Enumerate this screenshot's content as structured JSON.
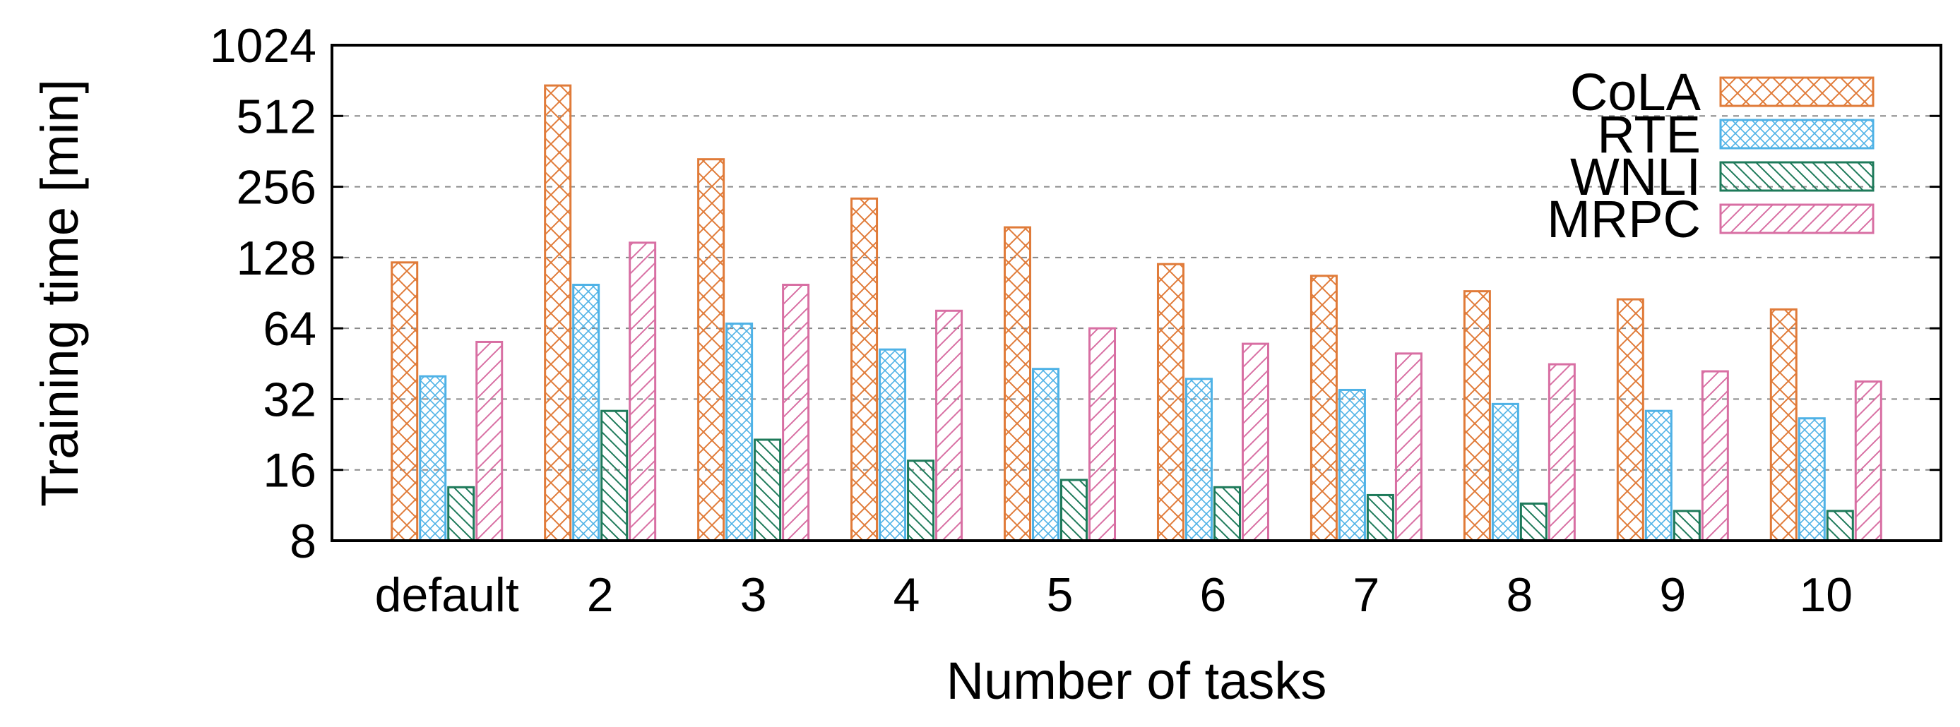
{
  "chart_data": {
    "type": "bar",
    "xlabel": "Number of tasks",
    "ylabel": "Training time [min]",
    "y_scale": "log2",
    "ylim": [
      8,
      1024
    ],
    "yticks": [
      "8",
      "16",
      "32",
      "64",
      "128",
      "256",
      "512",
      "1024"
    ],
    "grid": true,
    "legend_position": "top-right",
    "categories": [
      "default",
      "2",
      "3",
      "4",
      "5",
      "6",
      "7",
      "8",
      "9",
      "10"
    ],
    "series": [
      {
        "name": "CoLA",
        "color": "#e07b39",
        "pattern": "crosshatch",
        "values": [
          122,
          690,
          335,
          228,
          172,
          120,
          107,
          92,
          85,
          77
        ]
      },
      {
        "name": "RTE",
        "color": "#4fb2e6",
        "pattern": "fine-crosshatch",
        "values": [
          40,
          98,
          67,
          52,
          43,
          39,
          35,
          30.5,
          28.5,
          26.5
        ]
      },
      {
        "name": "WNLI",
        "color": "#1e7a5a",
        "pattern": "diagonal-back",
        "values": [
          13.5,
          28.5,
          21.5,
          17.5,
          14.5,
          13.5,
          12.5,
          11.5,
          10.7,
          10.7
        ]
      },
      {
        "name": "MRPC",
        "color": "#d86fa3",
        "pattern": "diagonal-forward",
        "values": [
          56,
          148,
          98,
          76,
          64,
          55,
          50,
          45,
          42,
          38
        ]
      }
    ]
  }
}
